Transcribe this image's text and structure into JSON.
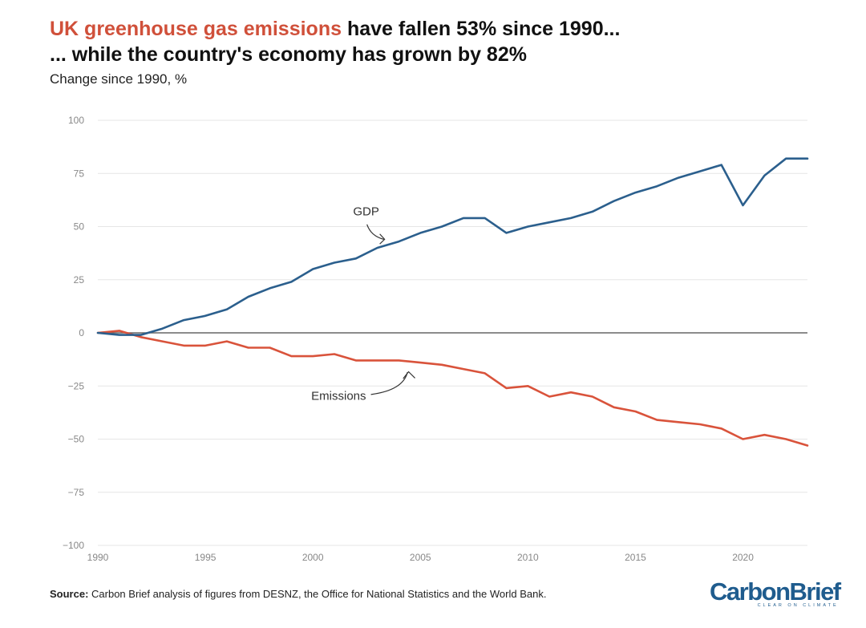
{
  "header": {
    "title_highlight": "UK greenhouse gas emissions",
    "title_rest": " have fallen 53% since 1990...",
    "title_line2": "... while the country's economy has grown by 82%",
    "subtitle": "Change since 1990, %"
  },
  "footer": {
    "source_label": "Source:",
    "source_text": " Carbon Brief analysis of figures from DESNZ, the Office for National Statistics and the World Bank.",
    "logo_text": "CarbonBrief",
    "logo_tagline": "CLEAR ON CLIMATE"
  },
  "colors": {
    "gdp": "#2b5f8d",
    "emissions": "#d9533b",
    "title_highlight": "#d0503a",
    "zero_line": "#666666",
    "grid": "#e6e6e6"
  },
  "chart_data": {
    "type": "line",
    "title": "UK greenhouse gas emissions have fallen 53% since 1990... ... while the country's economy has grown by 82%",
    "ylabel": "Change since 1990, %",
    "xlabel": "",
    "xlim": [
      1990,
      2023
    ],
    "ylim": [
      -100,
      100
    ],
    "x_ticks": [
      1990,
      1995,
      2000,
      2005,
      2010,
      2015,
      2020
    ],
    "y_ticks": [
      100,
      75,
      50,
      25,
      0,
      -25,
      -50,
      -75,
      -100
    ],
    "grid": true,
    "x": [
      1990,
      1991,
      1992,
      1993,
      1994,
      1995,
      1996,
      1997,
      1998,
      1999,
      2000,
      2001,
      2002,
      2003,
      2004,
      2005,
      2006,
      2007,
      2008,
      2009,
      2010,
      2011,
      2012,
      2013,
      2014,
      2015,
      2016,
      2017,
      2018,
      2019,
      2020,
      2021,
      2022,
      2023
    ],
    "series": [
      {
        "name": "GDP",
        "label": "GDP",
        "color": "#2b5f8d",
        "values": [
          0,
          -1,
          -1,
          2,
          6,
          8,
          11,
          17,
          21,
          24,
          30,
          33,
          35,
          40,
          43,
          47,
          50,
          54,
          54,
          47,
          50,
          52,
          54,
          57,
          62,
          66,
          69,
          73,
          76,
          79,
          60,
          74,
          82,
          82
        ]
      },
      {
        "name": "Emissions",
        "label": "Emissions",
        "color": "#d9533b",
        "values": [
          0,
          1,
          -2,
          -4,
          -6,
          -6,
          -4,
          -7,
          -7,
          -11,
          -11,
          -10,
          -13,
          -13,
          -13,
          -14,
          -15,
          -17,
          -19,
          -26,
          -25,
          -30,
          -28,
          -30,
          -35,
          -37,
          -41,
          -42,
          -43,
          -45,
          -50,
          -48,
          -50,
          -53
        ]
      }
    ]
  }
}
